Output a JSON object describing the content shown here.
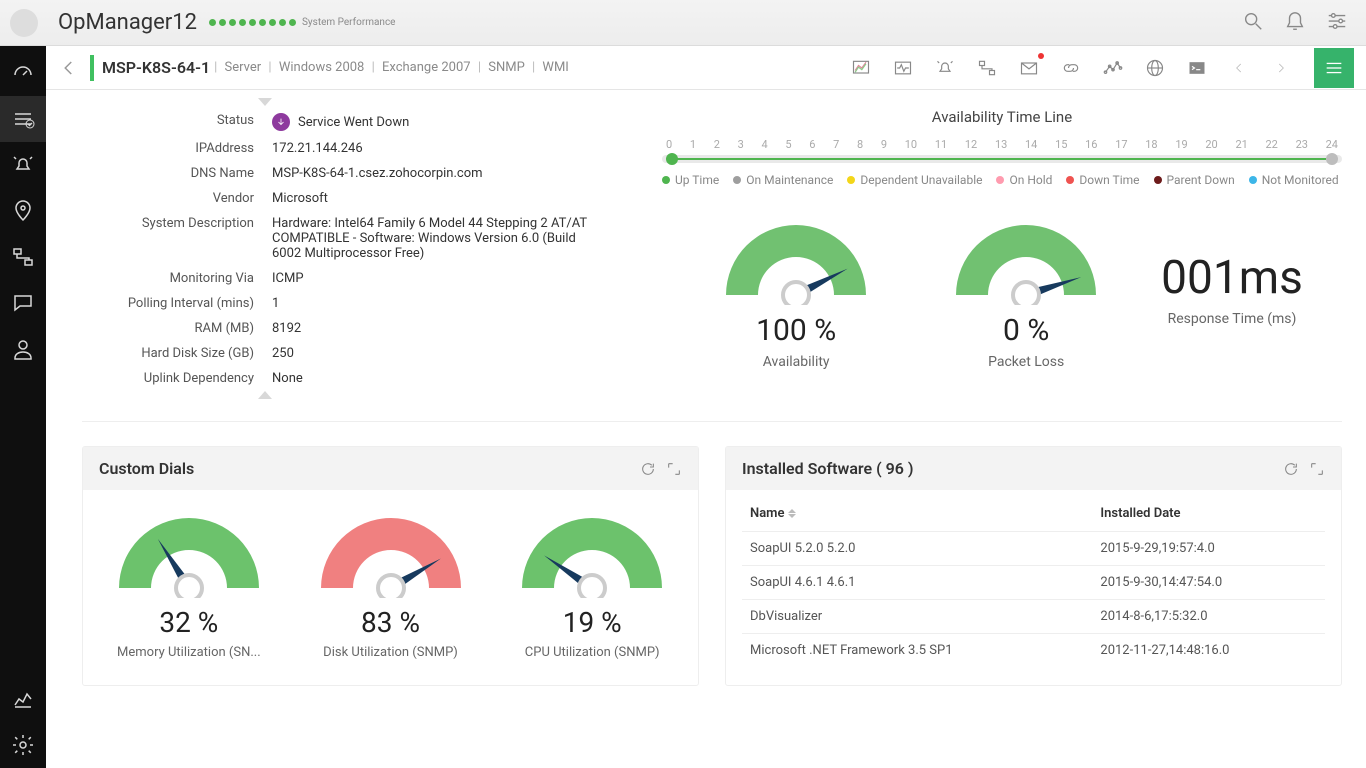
{
  "app": {
    "name": "OpManager12",
    "perf_label": "System Performance",
    "dot_count": 9,
    "dot_color": "#4fb54f"
  },
  "subheader": {
    "host": "MSP-K8S-64-1",
    "crumbs": [
      "Server",
      "Windows 2008",
      "Exchange 2007",
      "SNMP",
      "WMI"
    ]
  },
  "details": {
    "rows": [
      {
        "label": "Status",
        "value": "Service Went Down",
        "status_icon": true
      },
      {
        "label": "IPAddress",
        "value": "172.21.144.246"
      },
      {
        "label": "DNS Name",
        "value": "MSP-K8S-64-1.csez.zohocorpin.com"
      },
      {
        "label": "Vendor",
        "value": "Microsoft"
      },
      {
        "label": "System Description",
        "value": "Hardware: Intel64 Family 6 Model 44 Stepping 2 AT/AT COMPATIBLE - Software: Windows Version 6.0 (Build 6002 Multiprocessor Free)"
      },
      {
        "label": "Monitoring Via",
        "value": "ICMP"
      },
      {
        "label": "Polling Interval (mins)",
        "value": "1"
      },
      {
        "label": "RAM (MB)",
        "value": "8192"
      },
      {
        "label": "Hard Disk Size (GB)",
        "value": "250"
      },
      {
        "label": "Uplink Dependency",
        "value": "None"
      }
    ]
  },
  "timeline": {
    "title": "Availability Time Line",
    "ticks": [
      "0",
      "1",
      "2",
      "3",
      "4",
      "5",
      "6",
      "7",
      "8",
      "9",
      "10",
      "11",
      "12",
      "13",
      "14",
      "15",
      "16",
      "17",
      "18",
      "19",
      "20",
      "21",
      "22",
      "23",
      "24"
    ],
    "legend": [
      {
        "label": "Up Time",
        "color": "#4fb54f"
      },
      {
        "label": "On Maintenance",
        "color": "#9e9e9e"
      },
      {
        "label": "Dependent Unavailable",
        "color": "#f3d61a"
      },
      {
        "label": "On Hold",
        "color": "#ff9baf"
      },
      {
        "label": "Down Time",
        "color": "#ef5350"
      },
      {
        "label": "Parent Down",
        "color": "#6d1b1b"
      },
      {
        "label": "Not Monitored",
        "color": "#3db6e8"
      }
    ]
  },
  "gauges": {
    "main": [
      {
        "label": "Availability",
        "value": "100 %",
        "pct": 100,
        "color": "#71c171",
        "needle_pct": 85
      },
      {
        "label": "Packet Loss",
        "value": "0 %",
        "pct": 0,
        "color": "#71c171",
        "needle_pct": 90
      }
    ],
    "response": {
      "value": "001ms",
      "label": "Response Time (ms)"
    }
  },
  "custom_dials": {
    "title": "Custom Dials",
    "items": [
      {
        "label": "Memory Utilization (SN...",
        "value": "32 %",
        "pct": 32,
        "color": "#6cc26c"
      },
      {
        "label": "Disk Utilization (SNMP)",
        "value": "83 %",
        "pct": 83,
        "color": "#f08080"
      },
      {
        "label": "CPU Utilization (SNMP)",
        "value": "19 %",
        "pct": 19,
        "color": "#6cc26c"
      }
    ]
  },
  "software": {
    "title": "Installed Software ( 96 )",
    "columns": [
      "Name",
      "Installed Date"
    ],
    "rows": [
      [
        "SoapUI 5.2.0 5.2.0",
        "2015-9-29,19:57:4.0"
      ],
      [
        "SoapUI 4.6.1 4.6.1",
        "2015-9-30,14:47:54.0"
      ],
      [
        "DbVisualizer",
        "2014-8-6,17:5:32.0"
      ],
      [
        "Microsoft .NET Framework 3.5 SP1",
        "2012-11-27,14:48:16.0"
      ]
    ]
  },
  "colors": {
    "arc_bg": "#f1f1f1",
    "needle": "#173a5e"
  }
}
